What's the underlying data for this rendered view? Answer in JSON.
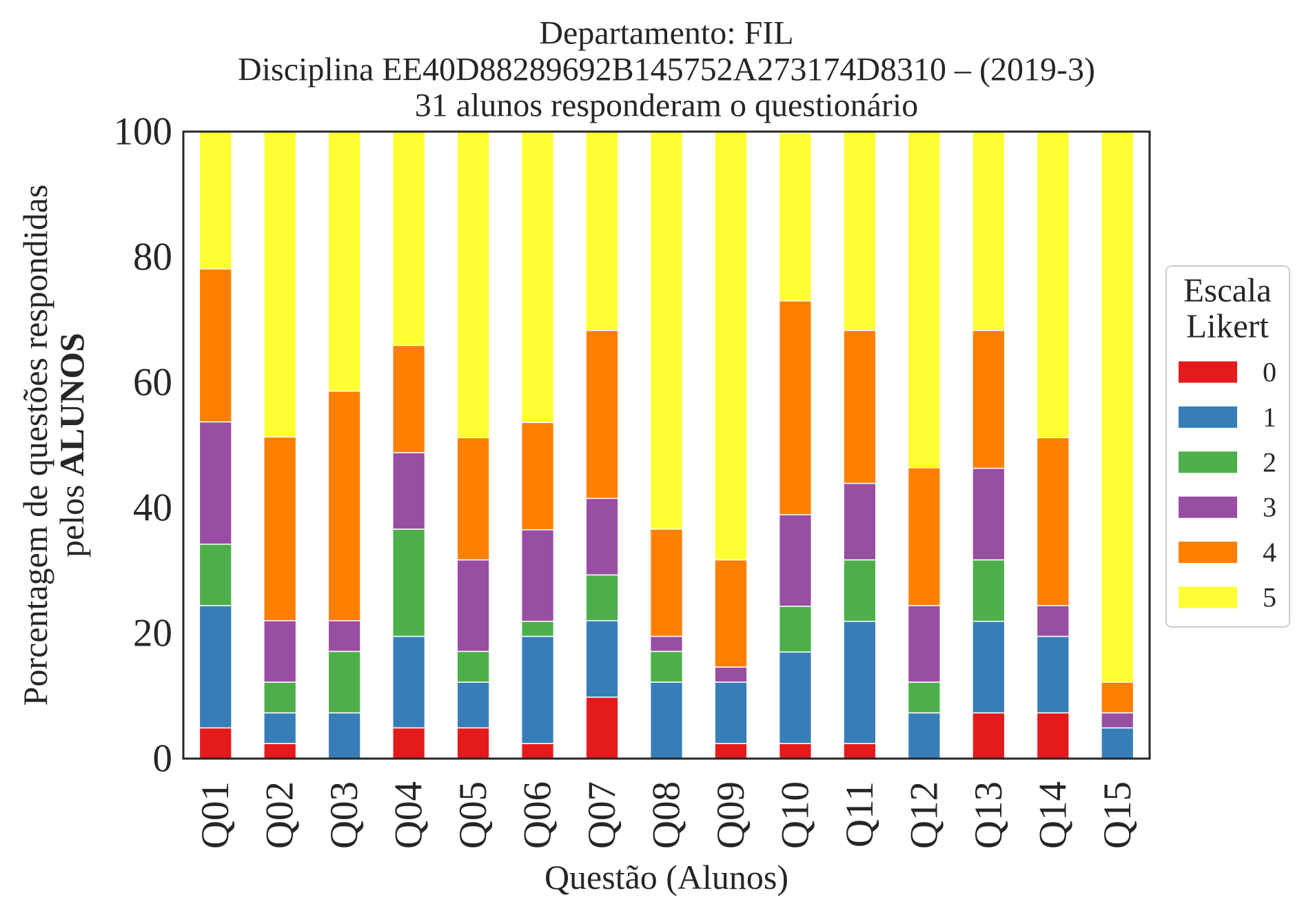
{
  "chart_data": {
    "type": "bar",
    "stacked": true,
    "title": [
      "Departamento: FIL",
      "Disciplina EE40D88289692B145752A273174D8310 – (2019-3)",
      "31 alunos responderam o questionário"
    ],
    "xlabel": "Questão (Alunos)",
    "ylabel": {
      "line1": "Porcentagem de questões respondidas",
      "line2_prefix": "pelos",
      "line2_bold": "ALUNOS"
    },
    "ylim": [
      0,
      100
    ],
    "yticks": [
      0,
      20,
      40,
      60,
      80,
      100
    ],
    "grid": false,
    "categories": [
      "Q01",
      "Q02",
      "Q03",
      "Q04",
      "Q05",
      "Q06",
      "Q07",
      "Q08",
      "Q09",
      "Q10",
      "Q11",
      "Q12",
      "Q13",
      "Q14",
      "Q15"
    ],
    "legend": {
      "title": [
        "Escala",
        "Likert"
      ],
      "placement": "right, outside plot"
    },
    "series": [
      {
        "name": "0",
        "color": "#e41a1c",
        "values": [
          4.9,
          2.4,
          0,
          4.9,
          4.9,
          2.4,
          9.8,
          0,
          2.4,
          2.4,
          2.4,
          0,
          7.3,
          7.3,
          0
        ]
      },
      {
        "name": "1",
        "color": "#377eb8",
        "values": [
          19.5,
          4.9,
          7.3,
          14.6,
          7.3,
          17.1,
          12.2,
          12.2,
          9.8,
          14.6,
          19.5,
          7.3,
          14.6,
          12.2,
          4.9
        ]
      },
      {
        "name": "2",
        "color": "#4daf4a",
        "values": [
          9.8,
          4.9,
          9.8,
          17.1,
          4.9,
          2.4,
          7.3,
          4.9,
          0,
          7.3,
          9.8,
          4.9,
          9.8,
          0,
          0
        ]
      },
      {
        "name": "3",
        "color": "#984ea3",
        "values": [
          19.5,
          9.8,
          4.9,
          12.2,
          14.6,
          14.6,
          12.2,
          2.4,
          2.4,
          14.6,
          12.2,
          12.2,
          14.6,
          4.9,
          2.4
        ]
      },
      {
        "name": "4",
        "color": "#ff7f00",
        "values": [
          24.4,
          29.3,
          36.6,
          17.1,
          19.5,
          17.1,
          26.8,
          17.1,
          17.1,
          34.1,
          24.4,
          22.0,
          22.0,
          26.8,
          4.9
        ]
      },
      {
        "name": "5",
        "color": "#ffff33",
        "values": [
          22.0,
          48.8,
          41.5,
          34.1,
          48.8,
          46.3,
          31.7,
          63.4,
          68.3,
          26.8,
          31.7,
          53.7,
          31.7,
          48.8,
          87.8
        ]
      }
    ]
  }
}
